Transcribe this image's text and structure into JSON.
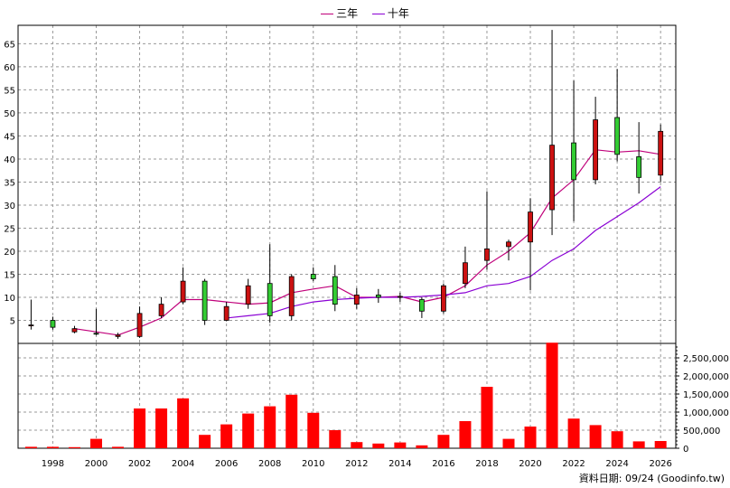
{
  "legend": {
    "item1": {
      "label": "三年",
      "color": "#c0007a"
    },
    "item2": {
      "label": "十年",
      "color": "#8a00d4"
    }
  },
  "credit": "資料日期: 09/24  (Goodinfo.tw)",
  "colors": {
    "up_candle": "#cc1111",
    "down_candle": "#33cc33",
    "volume_bar": "#ff0000",
    "grid": "#999999"
  },
  "chart_data": [
    {
      "type": "candlestick",
      "y_ticks": [
        5,
        10,
        15,
        20,
        25,
        30,
        35,
        40,
        45,
        50,
        55,
        60,
        65
      ],
      "ylim": [
        0,
        69
      ],
      "x_ticks": [
        1998,
        2000,
        2002,
        2004,
        2006,
        2008,
        2010,
        2012,
        2014,
        2016,
        2018,
        2020,
        2022,
        2024,
        2026
      ],
      "xlim": [
        1996.4,
        2026.7
      ],
      "grid": true,
      "candles": [
        {
          "year": 1997,
          "open": 4.0,
          "high": 9.5,
          "low": 3.0,
          "close": 4.0
        },
        {
          "year": 1998,
          "open": 5.0,
          "high": 5.8,
          "low": 3.0,
          "close": 3.5
        },
        {
          "year": 1999,
          "open": 2.5,
          "high": 3.8,
          "low": 2.2,
          "close": 3.2
        },
        {
          "year": 2000,
          "open": 2.2,
          "high": 7.5,
          "low": 1.8,
          "close": 2.0
        },
        {
          "year": 2001,
          "open": 1.5,
          "high": 2.3,
          "low": 1.0,
          "close": 1.8
        },
        {
          "year": 2002,
          "open": 1.5,
          "high": 8.0,
          "low": 1.2,
          "close": 6.5
        },
        {
          "year": 2003,
          "open": 6.0,
          "high": 10.0,
          "low": 5.5,
          "close": 8.5
        },
        {
          "year": 2004,
          "open": 9.0,
          "high": 16.5,
          "low": 8.5,
          "close": 13.5
        },
        {
          "year": 2005,
          "open": 13.5,
          "high": 14.0,
          "low": 4.0,
          "close": 5.0
        },
        {
          "year": 2006,
          "open": 5.0,
          "high": 9.0,
          "low": 4.8,
          "close": 8.0
        },
        {
          "year": 2007,
          "open": 8.5,
          "high": 14.0,
          "low": 7.5,
          "close": 12.5
        },
        {
          "year": 2008,
          "open": 13.0,
          "high": 21.5,
          "low": 4.5,
          "close": 6.0
        },
        {
          "year": 2009,
          "open": 6.0,
          "high": 15.0,
          "low": 5.0,
          "close": 14.5
        },
        {
          "year": 2010,
          "open": 15.0,
          "high": 16.5,
          "low": 13.5,
          "close": 14.0
        },
        {
          "year": 2011,
          "open": 14.5,
          "high": 17.0,
          "low": 7.0,
          "close": 8.5
        },
        {
          "year": 2012,
          "open": 8.5,
          "high": 12.0,
          "low": 7.5,
          "close": 10.5
        },
        {
          "year": 2013,
          "open": 10.5,
          "high": 11.8,
          "low": 8.8,
          "close": 10.0
        },
        {
          "year": 2014,
          "open": 10.0,
          "high": 11.0,
          "low": 9.0,
          "close": 10.2
        },
        {
          "year": 2015,
          "open": 9.5,
          "high": 10.0,
          "low": 5.5,
          "close": 7.0
        },
        {
          "year": 2016,
          "open": 7.0,
          "high": 13.0,
          "low": 6.5,
          "close": 12.5
        },
        {
          "year": 2017,
          "open": 13.0,
          "high": 21.0,
          "low": 12.0,
          "close": 17.5
        },
        {
          "year": 2018,
          "open": 18.0,
          "high": 33.0,
          "low": 16.0,
          "close": 20.5
        },
        {
          "year": 2019,
          "open": 21.0,
          "high": 22.5,
          "low": 18.0,
          "close": 22.0
        },
        {
          "year": 2020,
          "open": 22.0,
          "high": 31.5,
          "low": 11.5,
          "close": 28.5
        },
        {
          "year": 2021,
          "open": 29.0,
          "high": 68.0,
          "low": 23.5,
          "close": 43.0
        },
        {
          "year": 2022,
          "open": 43.5,
          "high": 57.0,
          "low": 26.5,
          "close": 35.5
        },
        {
          "year": 2023,
          "open": 35.5,
          "high": 53.5,
          "low": 34.5,
          "close": 48.5
        },
        {
          "year": 2024,
          "open": 49.0,
          "high": 59.5,
          "low": 39.5,
          "close": 41.0
        },
        {
          "year": 2025,
          "open": 40.5,
          "high": 48.0,
          "low": 32.5,
          "close": 36.0
        },
        {
          "year": 2026,
          "open": 36.5,
          "high": 47.5,
          "low": 35.0,
          "close": 46.0
        }
      ],
      "lines": [
        {
          "name": "三年",
          "color": "#c0007a",
          "points": [
            [
              1999,
              3.2
            ],
            [
              2000,
              2.5
            ],
            [
              2001,
              1.8
            ],
            [
              2002,
              3.5
            ],
            [
              2003,
              5.5
            ],
            [
              2004,
              9.5
            ],
            [
              2005,
              9.5
            ],
            [
              2006,
              9.0
            ],
            [
              2007,
              8.5
            ],
            [
              2008,
              8.8
            ],
            [
              2009,
              11.0
            ],
            [
              2010,
              11.8
            ],
            [
              2011,
              12.5
            ],
            [
              2012,
              10.0
            ],
            [
              2013,
              10.0
            ],
            [
              2014,
              10.2
            ],
            [
              2015,
              9.0
            ],
            [
              2016,
              10.0
            ],
            [
              2017,
              12.5
            ],
            [
              2018,
              17.0
            ],
            [
              2019,
              20.0
            ],
            [
              2020,
              24.0
            ],
            [
              2021,
              31.5
            ],
            [
              2022,
              35.5
            ],
            [
              2023,
              42.0
            ],
            [
              2024,
              41.5
            ],
            [
              2025,
              41.8
            ],
            [
              2026,
              41.0
            ]
          ]
        },
        {
          "name": "十年",
          "color": "#8a00d4",
          "points": [
            [
              2006,
              5.5
            ],
            [
              2007,
              6.0
            ],
            [
              2008,
              6.5
            ],
            [
              2009,
              8.0
            ],
            [
              2010,
              9.0
            ],
            [
              2011,
              9.5
            ],
            [
              2012,
              9.8
            ],
            [
              2013,
              10.0
            ],
            [
              2014,
              10.0
            ],
            [
              2015,
              10.2
            ],
            [
              2016,
              10.5
            ],
            [
              2017,
              11.0
            ],
            [
              2018,
              12.5
            ],
            [
              2019,
              13.0
            ],
            [
              2020,
              14.5
            ],
            [
              2021,
              18.0
            ],
            [
              2022,
              20.5
            ],
            [
              2023,
              24.5
            ],
            [
              2024,
              27.5
            ],
            [
              2025,
              30.5
            ],
            [
              2026,
              34.0
            ]
          ]
        }
      ]
    },
    {
      "type": "bar",
      "y_ticks": [
        0,
        500000,
        1000000,
        1500000,
        2000000,
        2500000
      ],
      "y_tick_labels": [
        "0",
        "500,000",
        "1,000,000",
        "1,500,000",
        "2,000,000",
        "2,500,000"
      ],
      "ylim": [
        0,
        2900000
      ],
      "grid": true,
      "categories": [
        1997,
        1998,
        1999,
        2000,
        2001,
        2002,
        2003,
        2004,
        2005,
        2006,
        2007,
        2008,
        2009,
        2010,
        2011,
        2012,
        2013,
        2014,
        2015,
        2016,
        2017,
        2018,
        2019,
        2020,
        2021,
        2022,
        2023,
        2024,
        2025,
        2026
      ],
      "values": [
        40000,
        40000,
        30000,
        260000,
        40000,
        1100000,
        1100000,
        1380000,
        370000,
        660000,
        960000,
        1160000,
        1480000,
        980000,
        500000,
        170000,
        130000,
        160000,
        80000,
        370000,
        750000,
        1700000,
        260000,
        600000,
        2920000,
        820000,
        640000,
        470000,
        190000,
        200000
      ]
    }
  ]
}
